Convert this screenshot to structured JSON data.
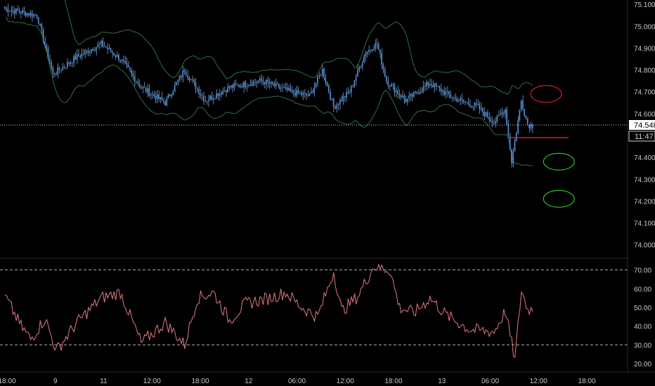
{
  "colors": {
    "background": "#000000",
    "candle": "#4a90d9",
    "candle_wick": "#8fb8ea",
    "bollinger": "#2f6e44",
    "rsi_line": "#e07b83",
    "rsi_guides": "#b0b0b0",
    "axis_text": "#c8c8c8",
    "price_line": "#d0d0d0",
    "resistance_marker": "#d0202a",
    "target_marker": "#2bc02b",
    "last_price_badge_bg": "#ffffff",
    "last_price_badge_text": "#000000"
  },
  "price_label": {
    "last": "74.548",
    "countdown": "11:47"
  },
  "chart_data": [
    {
      "type": "candlestick",
      "title": "",
      "overlays": [
        "bollinger-bands"
      ],
      "y_ticks": [
        "75.100",
        "75.000",
        "74.900",
        "74.800",
        "74.700",
        "74.600",
        "74.500",
        "74.400",
        "74.300",
        "74.200",
        "74.100",
        "74.000"
      ],
      "ylim": [
        73.97,
        75.12
      ],
      "x_ticks": [
        "18:00",
        "9",
        "11",
        "12:00",
        "18:00",
        "12",
        "06:00",
        "12:00",
        "18:00",
        "13",
        "06:00",
        "12:00",
        "18:00"
      ],
      "last_price": 74.548,
      "anchor_closes": [
        {
          "x": 0,
          "close": 75.08
        },
        {
          "x": 20,
          "close": 75.05
        },
        {
          "x": 30,
          "close": 74.78
        },
        {
          "x": 45,
          "close": 74.86
        },
        {
          "x": 60,
          "close": 74.92
        },
        {
          "x": 72,
          "close": 74.85
        },
        {
          "x": 85,
          "close": 74.72
        },
        {
          "x": 100,
          "close": 74.65
        },
        {
          "x": 112,
          "close": 74.8
        },
        {
          "x": 125,
          "close": 74.66
        },
        {
          "x": 140,
          "close": 74.72
        },
        {
          "x": 160,
          "close": 74.75
        },
        {
          "x": 178,
          "close": 74.7
        },
        {
          "x": 190,
          "close": 74.68
        },
        {
          "x": 198,
          "close": 74.8
        },
        {
          "x": 205,
          "close": 74.63
        },
        {
          "x": 215,
          "close": 74.7
        },
        {
          "x": 225,
          "close": 74.88
        },
        {
          "x": 232,
          "close": 74.92
        },
        {
          "x": 238,
          "close": 74.75
        },
        {
          "x": 250,
          "close": 74.66
        },
        {
          "x": 265,
          "close": 74.74
        },
        {
          "x": 280,
          "close": 74.67
        },
        {
          "x": 295,
          "close": 74.63
        },
        {
          "x": 305,
          "close": 74.56
        },
        {
          "x": 312,
          "close": 74.62
        },
        {
          "x": 316,
          "close": 74.38
        },
        {
          "x": 322,
          "close": 74.66
        },
        {
          "x": 326,
          "close": 74.55
        }
      ],
      "markers": [
        {
          "type": "ellipse",
          "color": "resistance",
          "price": 74.69,
          "x": 330
        },
        {
          "type": "hline",
          "color": "resistance",
          "price": 74.49,
          "x_from": 314,
          "x_to": 352
        },
        {
          "type": "ellipse",
          "color": "target",
          "price": 74.38,
          "x": 338
        },
        {
          "type": "ellipse",
          "color": "target",
          "price": 74.21,
          "x": 338
        }
      ]
    },
    {
      "type": "line",
      "title": "",
      "y_ticks": [
        "70.00",
        "60.00",
        "50.00",
        "40.00",
        "30.00",
        "20.00"
      ],
      "ylim": [
        17,
        74
      ],
      "guides": [
        70,
        30
      ],
      "x_ticks": [
        "18:00",
        "9",
        "11",
        "12:00",
        "18:00",
        "12",
        "06:00",
        "12:00",
        "18:00",
        "13",
        "06:00",
        "12:00",
        "18:00"
      ],
      "anchor_values": [
        {
          "x": 0,
          "v": 56
        },
        {
          "x": 10,
          "v": 40
        },
        {
          "x": 16,
          "v": 33
        },
        {
          "x": 25,
          "v": 44
        },
        {
          "x": 32,
          "v": 27
        },
        {
          "x": 45,
          "v": 42
        },
        {
          "x": 60,
          "v": 55
        },
        {
          "x": 72,
          "v": 58
        },
        {
          "x": 85,
          "v": 31
        },
        {
          "x": 100,
          "v": 42
        },
        {
          "x": 112,
          "v": 30
        },
        {
          "x": 120,
          "v": 55
        },
        {
          "x": 130,
          "v": 58
        },
        {
          "x": 140,
          "v": 43
        },
        {
          "x": 150,
          "v": 52
        },
        {
          "x": 165,
          "v": 55
        },
        {
          "x": 175,
          "v": 58
        },
        {
          "x": 185,
          "v": 50
        },
        {
          "x": 195,
          "v": 45
        },
        {
          "x": 205,
          "v": 69
        },
        {
          "x": 210,
          "v": 48
        },
        {
          "x": 220,
          "v": 56
        },
        {
          "x": 230,
          "v": 72
        },
        {
          "x": 240,
          "v": 70
        },
        {
          "x": 246,
          "v": 50
        },
        {
          "x": 255,
          "v": 47
        },
        {
          "x": 265,
          "v": 55
        },
        {
          "x": 275,
          "v": 46
        },
        {
          "x": 290,
          "v": 38
        },
        {
          "x": 305,
          "v": 37
        },
        {
          "x": 312,
          "v": 48
        },
        {
          "x": 318,
          "v": 22
        },
        {
          "x": 322,
          "v": 59
        },
        {
          "x": 326,
          "v": 49
        }
      ]
    }
  ]
}
